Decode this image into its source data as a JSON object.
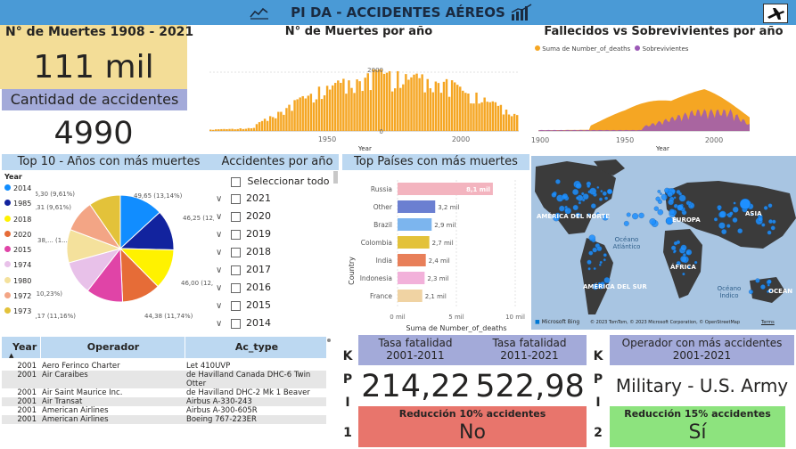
{
  "header": {
    "title": "PI DA - ACCIDENTES AÉREOS"
  },
  "kpi_deaths": {
    "title": "N° de Muertes 1908 - 2021",
    "value": "111 mil"
  },
  "kpi_accidents": {
    "title": "Cantidad de accidentes",
    "value": "4990"
  },
  "deaths_per_year": {
    "title": "N° de Muertes por año",
    "chart_data": {
      "type": "bar",
      "title": "N° de Muertes por año",
      "xlabel": "Year",
      "ylabel": "",
      "xlim": [
        1908,
        2021
      ],
      "ylim": [
        0,
        2900
      ],
      "x_ticks": [
        "1950",
        "2000"
      ],
      "y_ticks": [
        "0",
        "2000"
      ],
      "color": "#f5a623"
    }
  },
  "fallecidos": {
    "title": "Fallecidos vs Sobrevivientes por año",
    "chart_data": {
      "type": "area",
      "title": "Fallecidos vs Sobrevivientes por año",
      "xlabel": "Year",
      "xlim": [
        1900,
        2021
      ],
      "x_ticks": [
        "1900",
        "1950",
        "2000"
      ],
      "series": [
        {
          "name": "Suma de Number_of_deaths",
          "color": "#f5a623"
        },
        {
          "name": "Sobrevivientes",
          "color": "#9b59b6"
        }
      ]
    }
  },
  "top10": {
    "title": "Top 10 - Años con más muertes",
    "legend_title": "Year",
    "chart_data": {
      "type": "pie",
      "title": "Top 10 - Años con más muertes",
      "slices": [
        {
          "label": "2014",
          "value": 49.65,
          "text": "49,65 (13,14%)",
          "color": "#118dff"
        },
        {
          "label": "1985",
          "value": 46.25,
          "text": "46,25 (12,...",
          "color": "#12239e"
        },
        {
          "label": "2018",
          "value": 46.0,
          "text": "46,00 (12,1...",
          "color": "#fff200"
        },
        {
          "label": "2020",
          "value": 44.38,
          "text": "44,38 (11,74%)",
          "color": "#e66c37"
        },
        {
          "label": "2015",
          "value": 42.17,
          "text": "42,17 (11,16%)",
          "color": "#e044a7"
        },
        {
          "label": "1974",
          "value": 38.66,
          "text": "38,66 (10,23%)",
          "color": "#e8c1e9"
        },
        {
          "label": "1980",
          "value": 38.0,
          "text": "38,... (1...",
          "color": "#f4e19c"
        },
        {
          "label": "1972",
          "value": 36.31,
          "text": "36,31 (9,61%)",
          "color": "#f3a585"
        },
        {
          "label": "1973",
          "value": 36.3,
          "text": "36,30 (9,61%)",
          "color": "#e3c23a"
        }
      ]
    }
  },
  "slicer": {
    "title": "Accidentes por año",
    "select_all": "Seleccionar todo",
    "years": [
      "2021",
      "2020",
      "2019",
      "2018",
      "2017",
      "2016",
      "2015",
      "2014"
    ]
  },
  "top_countries": {
    "title": "Top Países con más muertes",
    "chart_data": {
      "type": "bar",
      "orientation": "horizontal",
      "title": "Top Países con más muertes",
      "xlabel": "Suma de Number_of_deaths",
      "ylabel": "Country",
      "xlim": [
        0,
        10
      ],
      "x_ticks": [
        "0 mil",
        "5 mil",
        "10 mil"
      ],
      "categories": [
        "Russia",
        "Other",
        "Brazil",
        "Colombia",
        "India",
        "Indonesia",
        "France"
      ],
      "values": [
        8.1,
        3.2,
        2.9,
        2.7,
        2.4,
        2.3,
        2.1
      ],
      "labels": [
        "8,1 mil",
        "3,2 mil",
        "2,9 mil",
        "2,7 mil",
        "2,4 mil",
        "2,3 mil",
        "2,1 mil"
      ],
      "colors": [
        "#f3b4bf",
        "#6b7fd1",
        "#7cb5ee",
        "#e3c23a",
        "#e87f59",
        "#f2b1da",
        "#f0d3a3"
      ]
    }
  },
  "map": {
    "labels": [
      "AMÉRICA DEL NORTE",
      "EUROPA",
      "ASIA",
      "Océano Atlántico",
      "ÁFRICA",
      "AMÉRICA DEL SUR",
      "Océano Índico",
      "OCEAN"
    ],
    "brand": "Microsoft Bing",
    "credits": "© 2023 TomTom, © 2023 Microsoft Corporation, © OpenStreetMap",
    "terms": "Terms"
  },
  "table": {
    "columns": [
      "Year",
      "Operador",
      "Ac_type"
    ],
    "rows": [
      [
        "2001",
        "Aero Ferinco Charter",
        "Let 410UVP"
      ],
      [
        "2001",
        "Air Caraibes",
        "de Havilland Canada DHC-6 Twin Otter"
      ],
      [
        "2001",
        "Air Saint Maurice Inc.",
        "de Havilland DHC-2 Mk 1 Beaver"
      ],
      [
        "2001",
        "Air Transat",
        "Airbus A-330-243"
      ],
      [
        "2001",
        "American Airlines",
        "Airbus A-300-605R"
      ],
      [
        "2001",
        "American Airlines",
        "Boeing 767-223ER"
      ]
    ]
  },
  "kpi1": {
    "letters": [
      "K",
      "P",
      "I",
      "1"
    ],
    "t1": "Tasa fatalidad 2001-2011",
    "t2": "Tasa fatalidad 2011-2021",
    "v1": "214,22",
    "v2": "522,98",
    "goal": "Reducción 10% accidentes",
    "result": "No"
  },
  "kpi2": {
    "letters": [
      "K",
      "P",
      "I",
      "2"
    ],
    "title": "Operador con más accidentes 2001-2021",
    "value": "Military - U.S. Army",
    "goal": "Reducción 15% accidentes",
    "result": "Sí"
  }
}
